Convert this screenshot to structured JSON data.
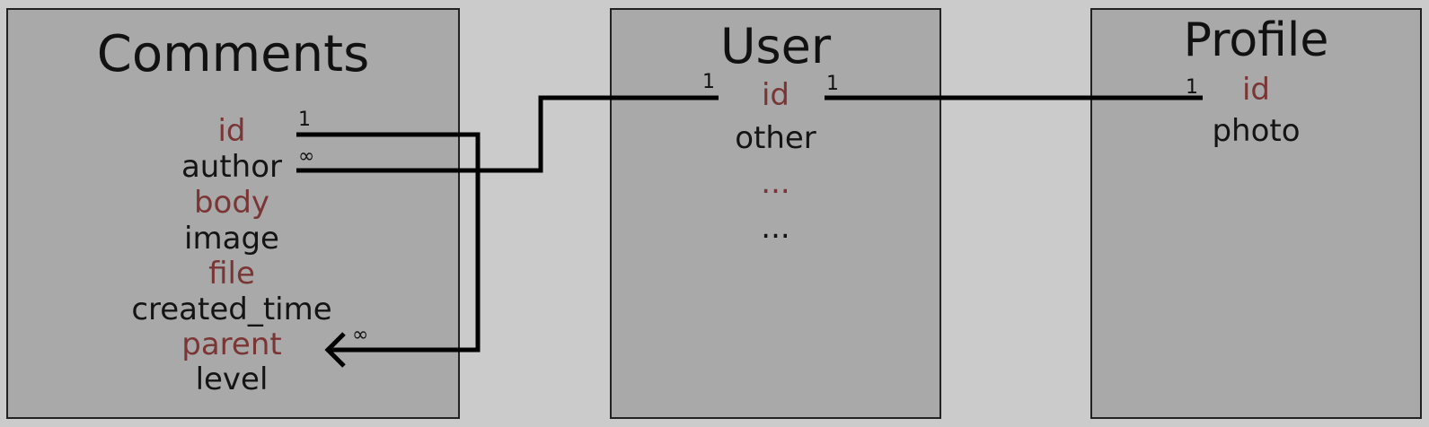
{
  "entities": {
    "comments": {
      "title": "Comments",
      "fields": [
        {
          "name": "id",
          "highlight": true
        },
        {
          "name": "author",
          "highlight": false
        },
        {
          "name": "body",
          "highlight": true
        },
        {
          "name": "image",
          "highlight": false
        },
        {
          "name": "file",
          "highlight": true
        },
        {
          "name": "created_time",
          "highlight": false
        },
        {
          "name": "parent",
          "highlight": true
        },
        {
          "name": "level",
          "highlight": false
        }
      ]
    },
    "user": {
      "title": "User",
      "fields": [
        {
          "name": "id",
          "highlight": true
        },
        {
          "name": "other",
          "highlight": false
        },
        {
          "name": "...",
          "highlight": true
        },
        {
          "name": "...",
          "highlight": false
        }
      ]
    },
    "profile": {
      "title": "Profile",
      "fields": [
        {
          "name": "id",
          "highlight": true
        },
        {
          "name": "photo",
          "highlight": false
        }
      ]
    }
  },
  "relations": {
    "comments_self": {
      "from_label": "1",
      "to_label": "∞"
    },
    "comments_user": {
      "from_label": "∞",
      "to_label": "1"
    },
    "user_profile": {
      "from_label": "1",
      "to_label": "1"
    }
  },
  "colors": {
    "background": "#cbcbcb",
    "entity_fill": "#a9a9a9",
    "key_text": "#7a3535",
    "normal_text": "#141414",
    "line": "#000000"
  }
}
